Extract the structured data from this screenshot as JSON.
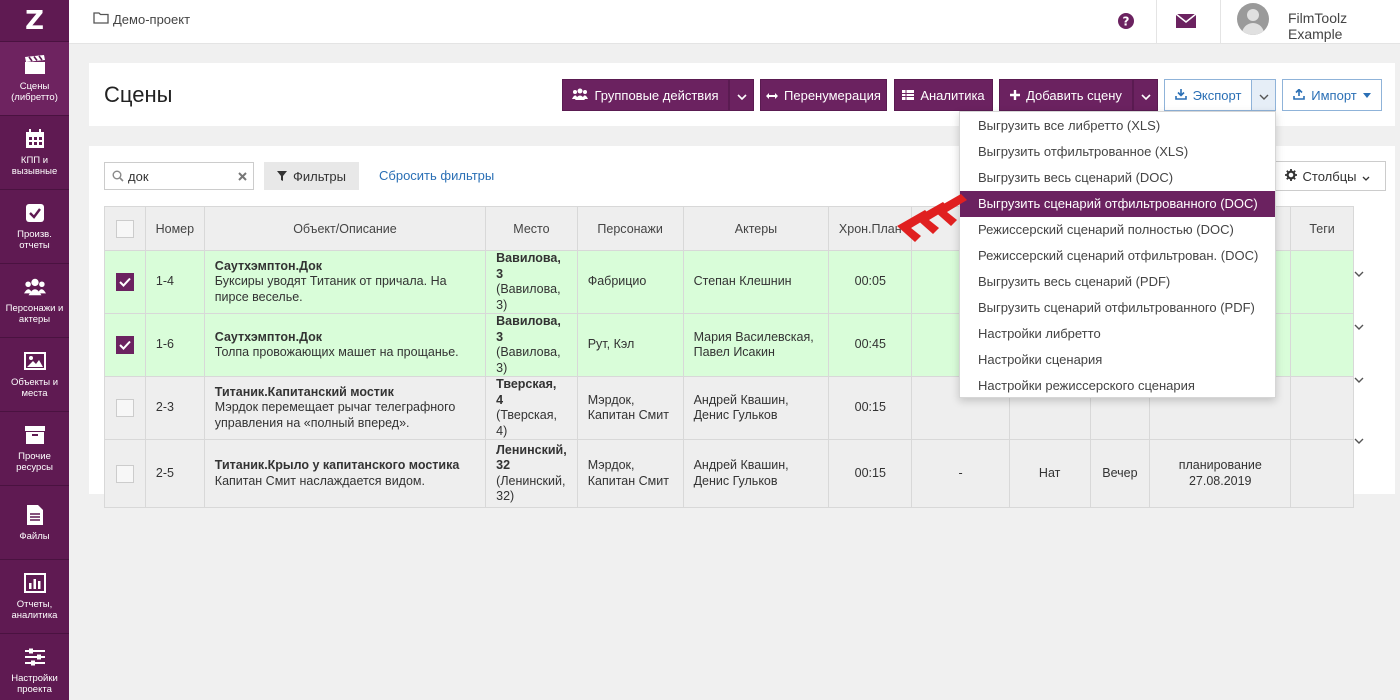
{
  "sidebar": {
    "logo": "Z",
    "items": [
      {
        "label": "Сцены (либретто)",
        "icon": "clapperboard-icon"
      },
      {
        "label": "КПП и вызывные",
        "icon": "calendar-icon"
      },
      {
        "label": "Произв. отчеты",
        "icon": "checkbox-icon"
      },
      {
        "label": "Персонажи и актеры",
        "icon": "people-icon"
      },
      {
        "label": "Объекты и места",
        "icon": "image-icon"
      },
      {
        "label": "Прочие ресурсы",
        "icon": "archive-icon"
      },
      {
        "label": "Файлы",
        "icon": "file-icon"
      },
      {
        "label": "Отчеты, аналитика",
        "icon": "bar-chart-icon"
      },
      {
        "label": "Настройки проекта",
        "icon": "sliders-icon"
      }
    ]
  },
  "topbar": {
    "breadcrumb": "Демо-проект",
    "user_name": "FilmToolz Example"
  },
  "header": {
    "title": "Сцены",
    "group_actions": "Групповые действия",
    "renumber": "Перенумерация",
    "analytics": "Аналитика",
    "add_scene": "Добавить сцену",
    "export": "Экспорт",
    "import": "Импорт"
  },
  "filters": {
    "search_value": "док",
    "filters_label": "Фильтры",
    "reset_label": "Сбросить фильтры",
    "columns_label": "Столбцы"
  },
  "table": {
    "headers": {
      "number": "Номер",
      "object": "Объект/Описание",
      "place": "Место",
      "characters": "Персонажи",
      "actors": "Актеры",
      "chron": "Хрон.План",
      "tags": "Теги"
    },
    "rows": [
      {
        "checked": true,
        "number": "1-4",
        "object_title": "Саутхэмптон.Док",
        "object_desc": "Буксиры уводят Титаник от причала. На пирсе веселье.",
        "place_name": "Вавилова, 3",
        "place_addr": "(Вавилова, 3)",
        "characters": "Фабрицио",
        "actors": "Степан Клешнин",
        "chron": "00:05"
      },
      {
        "checked": true,
        "number": "1-6",
        "object_title": "Саутхэмптон.Док",
        "object_desc": "Толпа провожающих машет на прощанье.",
        "place_name": "Вавилова, 3",
        "place_addr": "(Вавилова, 3)",
        "characters": "Рут, Кэл",
        "actors": "Мария Василевская, Павел Исакин",
        "chron": "00:45"
      },
      {
        "checked": false,
        "number": "2-3",
        "object_title": "Титаник.Капитанский мостик",
        "object_desc": "Мэрдок перемещает рычаг телеграфного управления на «полный вперед».",
        "place_name": "Тверская, 4",
        "place_addr": "(Тверская, 4)",
        "characters": "Мэрдок, Капитан Смит",
        "actors": "Андрей Квашин, Денис Гульков",
        "chron": "00:15"
      },
      {
        "checked": false,
        "number": "2-5",
        "object_title": "Титаник.Крыло у капитанского мостика",
        "object_desc": "Капитан Смит наслаждается видом.",
        "place_name": "Ленинский, 32",
        "place_addr": "(Ленинский, 32)",
        "characters": "Мэрдок, Капитан Смит",
        "actors": "Андрей Квашин, Денис Гульков",
        "chron": "00:15",
        "extra_dash": "-",
        "extra_nat": "Нат",
        "extra_time": "Вечер",
        "extra_status": "планирование",
        "extra_date": "27.08.2019"
      }
    ]
  },
  "export_menu": {
    "items": [
      "Выгрузить все либретто (XLS)",
      "Выгрузить отфильтрованное (XLS)",
      "Выгрузить весь сценарий (DOC)",
      "Выгрузить сценарий отфильтрованного (DOC)",
      "Режиссерский сценарий полностью (DOC)",
      "Режиссерский сценарий отфильтрован. (DOC)",
      "Выгрузить весь сценарий (PDF)",
      "Выгрузить сценарий отфильтрованного (PDF)",
      "Настройки либретто",
      "Настройки сценария",
      "Настройки режиссерского сценария"
    ],
    "active_index": 3
  },
  "colors": {
    "sidebar": "#5f1a52",
    "accent": "#6b2260",
    "selected_row": "#d9fdd9",
    "link": "#2a6fb5",
    "arrow": "#e02020"
  }
}
